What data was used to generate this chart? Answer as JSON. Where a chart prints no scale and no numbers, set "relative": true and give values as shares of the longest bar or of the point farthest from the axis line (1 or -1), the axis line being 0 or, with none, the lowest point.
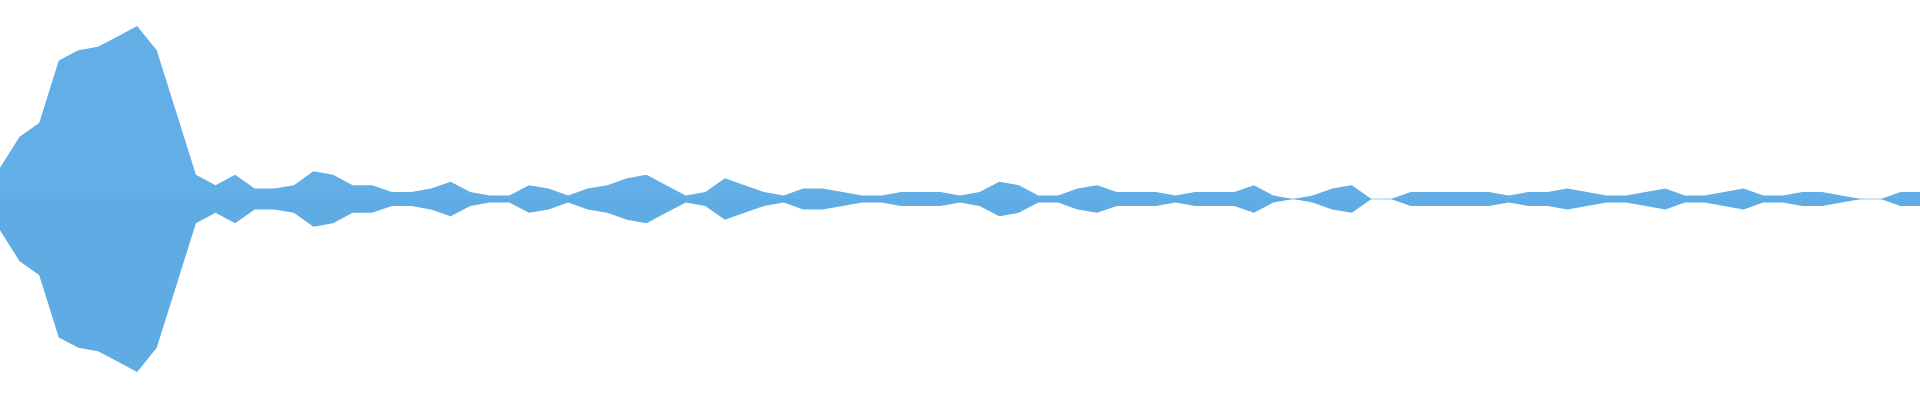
{
  "chart_data": {
    "type": "area",
    "relative": true,
    "ref_lines": [
      {
        "axis": "y",
        "value": 0,
        "color": "#9bc9ec"
      }
    ],
    "categories": [
      null,
      null,
      null,
      null,
      null,
      null,
      null,
      null,
      null,
      null,
      null,
      null,
      null,
      null,
      null,
      null,
      null,
      null,
      null,
      null,
      null,
      null,
      null,
      null,
      null,
      null,
      null,
      null,
      null,
      null,
      null,
      null,
      null,
      null,
      null,
      null,
      null,
      null,
      null,
      null,
      null,
      null,
      null,
      null,
      null,
      null,
      null,
      null,
      null,
      null,
      null,
      null,
      null,
      null,
      null,
      null,
      null,
      null,
      null,
      null,
      null,
      null,
      null,
      null,
      null,
      null,
      null,
      null,
      null,
      null,
      null,
      null,
      null,
      null,
      null,
      null,
      null,
      null,
      null,
      null,
      null,
      null,
      null,
      null,
      null,
      null,
      null,
      null,
      null,
      null,
      null,
      null,
      null,
      null,
      null,
      null,
      null,
      null,
      null
    ],
    "series": [
      {
        "color": "#62aee6",
        "values": [
          0.18,
          0.36,
          0.44,
          0.8,
          0.86,
          0.88,
          0.94,
          1.0,
          0.86,
          0.5,
          0.14,
          0.08,
          0.14,
          0.06,
          0.06,
          0.08,
          0.16,
          0.14,
          0.08,
          0.08,
          0.04,
          0.04,
          0.06,
          0.1,
          0.04,
          0.02,
          0.02,
          0.08,
          0.06,
          0.02,
          0.06,
          0.08,
          0.12,
          0.14,
          0.08,
          0.02,
          0.04,
          0.12,
          0.08,
          0.04,
          0.02,
          0.06,
          0.06,
          0.04,
          0.02,
          0.02,
          0.04,
          0.04,
          0.04,
          0.02,
          0.04,
          0.1,
          0.08,
          0.02,
          0.02,
          0.06,
          0.08,
          0.04,
          0.04,
          0.04,
          0.02,
          0.04,
          0.04,
          0.04,
          0.08,
          0.02,
          0,
          0.02,
          0.06,
          0.08,
          0,
          0,
          0.04,
          0.04,
          0.04,
          0.04,
          0.04,
          0.02,
          0.04,
          0.04,
          0.06,
          0.04,
          0.02,
          0.02,
          0.04,
          0.06,
          0.02,
          0.02,
          0.04,
          0.06,
          0.02,
          0.02,
          0.04,
          0.04,
          0.02,
          0,
          0,
          0.04,
          0.04
        ]
      },
      {
        "color": "#5fabe4",
        "values": [
          -0.18,
          -0.36,
          -0.44,
          -0.8,
          -0.86,
          -0.88,
          -0.94,
          -1.0,
          -0.86,
          -0.5,
          -0.14,
          -0.08,
          -0.14,
          -0.06,
          -0.06,
          -0.08,
          -0.16,
          -0.14,
          -0.08,
          -0.08,
          -0.04,
          -0.04,
          -0.06,
          -0.1,
          -0.04,
          -0.02,
          -0.02,
          -0.08,
          -0.06,
          -0.02,
          -0.06,
          -0.08,
          -0.12,
          -0.14,
          -0.08,
          -0.02,
          -0.04,
          -0.12,
          -0.08,
          -0.04,
          -0.02,
          -0.06,
          -0.06,
          -0.04,
          -0.02,
          -0.02,
          -0.04,
          -0.04,
          -0.04,
          -0.02,
          -0.04,
          -0.1,
          -0.08,
          -0.02,
          -0.02,
          -0.06,
          -0.08,
          -0.04,
          -0.04,
          -0.04,
          -0.02,
          -0.04,
          -0.04,
          -0.04,
          -0.08,
          -0.02,
          0,
          -0.02,
          -0.06,
          -0.08,
          0,
          0,
          -0.04,
          -0.04,
          -0.04,
          -0.04,
          -0.04,
          -0.02,
          -0.04,
          -0.04,
          -0.06,
          -0.04,
          -0.02,
          -0.02,
          -0.04,
          -0.06,
          -0.02,
          -0.02,
          -0.04,
          -0.06,
          -0.02,
          -0.02,
          -0.04,
          -0.04,
          -0.02,
          0,
          0,
          -0.04,
          -0.04
        ]
      }
    ]
  }
}
